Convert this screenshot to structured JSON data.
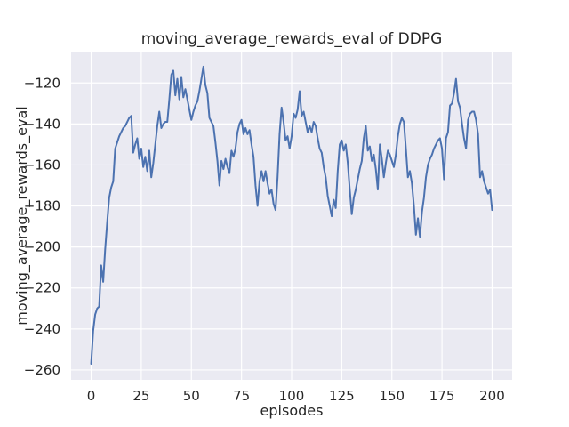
{
  "chart_data": {
    "type": "line",
    "title": "moving_average_rewards_eval of DDPG",
    "xlabel": "episodes",
    "ylabel": "moving_average_rewards_eval",
    "series_name": "DDPG moving average eval rewards",
    "legend": "none",
    "grid": true,
    "x_start": 0,
    "x_step": 1,
    "x_ticks": [
      0,
      25,
      50,
      75,
      100,
      125,
      150,
      175,
      200
    ],
    "y_ticks": [
      -260,
      -240,
      -220,
      -200,
      -180,
      -160,
      -140,
      -120
    ],
    "xlim": [
      -10,
      210
    ],
    "ylim": [
      -264.8,
      -104.7
    ],
    "values": [
      -257,
      -241,
      -233,
      -230,
      -229,
      -209,
      -217,
      -201,
      -188,
      -176,
      -171,
      -168,
      -152,
      -149,
      -146,
      -144,
      -142,
      -141,
      -139,
      -137,
      -136,
      -154,
      -150,
      -147,
      -157,
      -152,
      -161,
      -156,
      -163,
      -153,
      -166,
      -159,
      -150,
      -141,
      -134,
      -142,
      -140,
      -139,
      -139,
      -128,
      -116,
      -114,
      -126,
      -118,
      -128,
      -117,
      -127,
      -123,
      -128,
      -133,
      -138,
      -134,
      -131,
      -129,
      -124,
      -118,
      -112,
      -121,
      -125,
      -137,
      -139,
      -141,
      -149,
      -158,
      -170,
      -158,
      -162,
      -157,
      -161,
      -164,
      -153,
      -156,
      -152,
      -144,
      -140,
      -138,
      -145,
      -142,
      -145,
      -143,
      -150,
      -156,
      -170,
      -180,
      -168,
      -163,
      -168,
      -163,
      -169,
      -174,
      -172,
      -179,
      -182,
      -166,
      -145,
      -132,
      -139,
      -148,
      -146,
      -152,
      -146,
      -135,
      -137,
      -133,
      -124,
      -136,
      -134,
      -139,
      -144,
      -141,
      -144,
      -139,
      -141,
      -147,
      -152,
      -154,
      -161,
      -166,
      -175,
      -180,
      -185,
      -177,
      -181,
      -163,
      -150,
      -148,
      -153,
      -150,
      -159,
      -172,
      -184,
      -176,
      -172,
      -167,
      -162,
      -158,
      -147,
      -141,
      -153,
      -151,
      -158,
      -155,
      -162,
      -172,
      -150,
      -157,
      -166,
      -159,
      -153,
      -155,
      -158,
      -161,
      -155,
      -146,
      -140,
      -137,
      -139,
      -152,
      -166,
      -163,
      -169,
      -180,
      -194,
      -186,
      -195,
      -183,
      -176,
      -166,
      -160,
      -157,
      -155,
      -152,
      -150,
      -148,
      -147,
      -152,
      -167,
      -147,
      -144,
      -131,
      -130,
      -125,
      -118,
      -129,
      -132,
      -140,
      -147,
      -152,
      -138,
      -135,
      -134,
      -134,
      -138,
      -145,
      -166,
      -163,
      -168,
      -171,
      -174,
      -172,
      -182
    ],
    "colors": {
      "line": "#4c72b0",
      "plot_bg": "#eaeaf2",
      "grid": "#ffffff",
      "text": "#262626",
      "figure_bg": "#ffffff"
    }
  }
}
